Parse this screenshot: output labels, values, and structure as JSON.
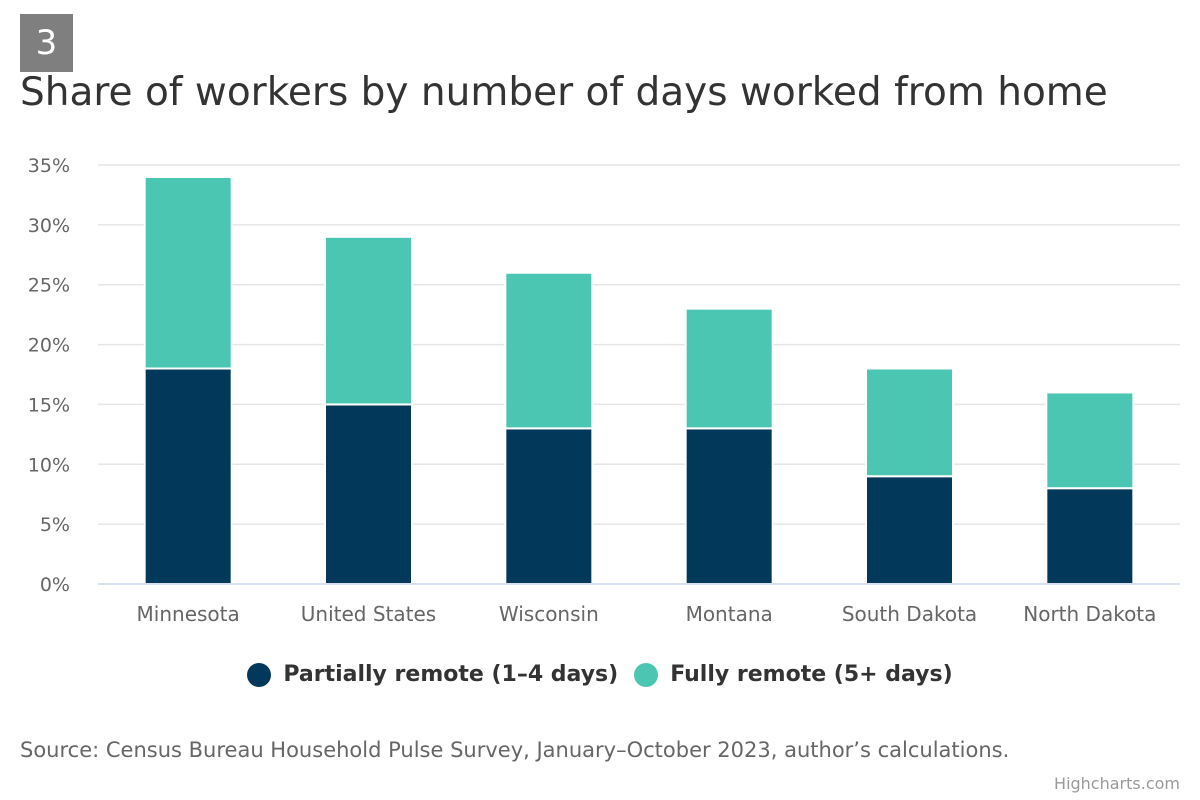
{
  "badge": "3",
  "source": "Source: Census Bureau Household Pulse Survey, January–October 2023, author’s calculations.",
  "credits": "Highcharts.com",
  "chart_data": {
    "type": "bar",
    "stacked": true,
    "title": "Share of workers by number of days worked from home",
    "categories": [
      "Minnesota",
      "United States",
      "Wisconsin",
      "Montana",
      "South Dakota",
      "North Dakota"
    ],
    "series": [
      {
        "name": "Partially remote (1–4 days)",
        "color": "#02395a",
        "values": [
          18,
          15,
          13,
          13,
          9,
          8
        ]
      },
      {
        "name": "Fully remote (5+ days)",
        "color": "#4bc6b2",
        "values": [
          16,
          14,
          13,
          10,
          9,
          8
        ]
      }
    ],
    "ylim": [
      0,
      35
    ],
    "yticks": [
      0,
      5,
      10,
      15,
      20,
      25,
      30,
      35
    ],
    "ytick_format": "percent",
    "grid": true,
    "legend_position": "bottom-center"
  }
}
